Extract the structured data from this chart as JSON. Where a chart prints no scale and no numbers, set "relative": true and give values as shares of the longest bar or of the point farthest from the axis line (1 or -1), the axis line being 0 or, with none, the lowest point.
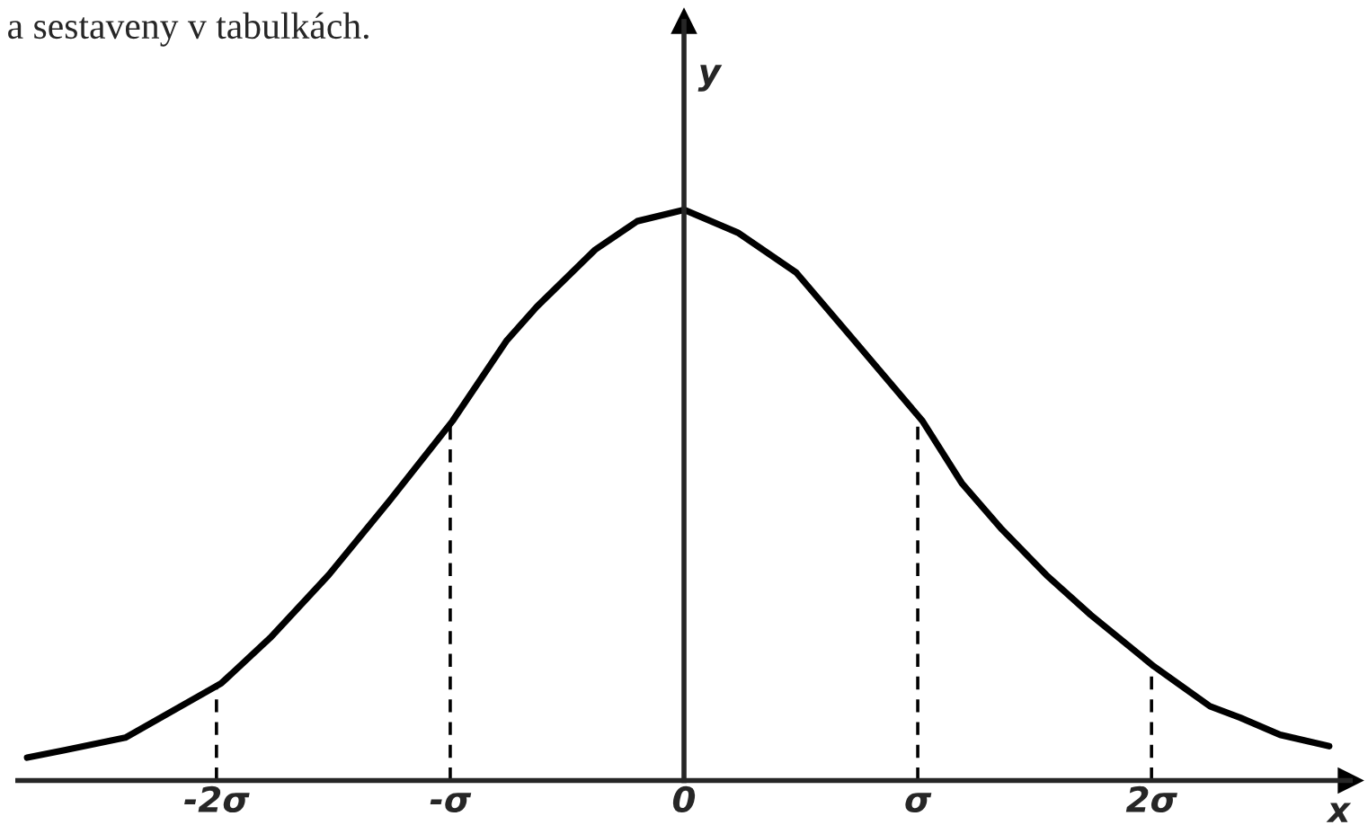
{
  "chart_data": {
    "type": "line",
    "relative": true,
    "xlabel": "x",
    "ylabel": "y",
    "annotations": [
      "a sestaveny v tabulkách."
    ],
    "xlim": [
      -2.85,
      2.85
    ],
    "xticks": [
      {
        "value": -2,
        "label": "-2σ"
      },
      {
        "value": -1,
        "label": "-σ"
      },
      0,
      {
        "value": 1,
        "label": "σ"
      },
      {
        "value": 2,
        "label": "2σ"
      }
    ],
    "marker": "none",
    "series": [
      {
        "color": "#000000",
        "line_style": "solid",
        "x": [
          -2.81,
          -2.65,
          -2.39,
          -1.98,
          -1.77,
          -1.52,
          -1.26,
          -0.99,
          -0.76,
          -0.63,
          -0.38,
          -0.2,
          0,
          0.23,
          0.48,
          0.73,
          1.02,
          1.19,
          1.36,
          1.55,
          1.74,
          2.01,
          2.25,
          2.38,
          2.55,
          2.76
        ],
        "values": [
          0.04,
          0.053,
          0.075,
          0.17,
          0.25,
          0.36,
          0.49,
          0.63,
          0.77,
          0.83,
          0.93,
          0.98,
          1.0,
          0.96,
          0.89,
          0.77,
          0.63,
          0.52,
          0.44,
          0.36,
          0.29,
          0.2,
          0.13,
          0.11,
          0.08,
          0.06
        ]
      },
      {
        "color": "#000000",
        "line_style": "dashed",
        "x": [
          -2,
          -2
        ],
        "values": [
          0,
          0.17
        ]
      },
      {
        "color": "#000000",
        "line_style": "dashed",
        "x": [
          -1,
          -1
        ],
        "values": [
          0,
          0.63
        ]
      },
      {
        "color": "#000000",
        "line_style": "dashed",
        "x": [
          1,
          1
        ],
        "values": [
          0,
          0.63
        ]
      },
      {
        "color": "#000000",
        "line_style": "dashed",
        "x": [
          2,
          2
        ],
        "values": [
          0,
          0.2
        ]
      }
    ]
  }
}
